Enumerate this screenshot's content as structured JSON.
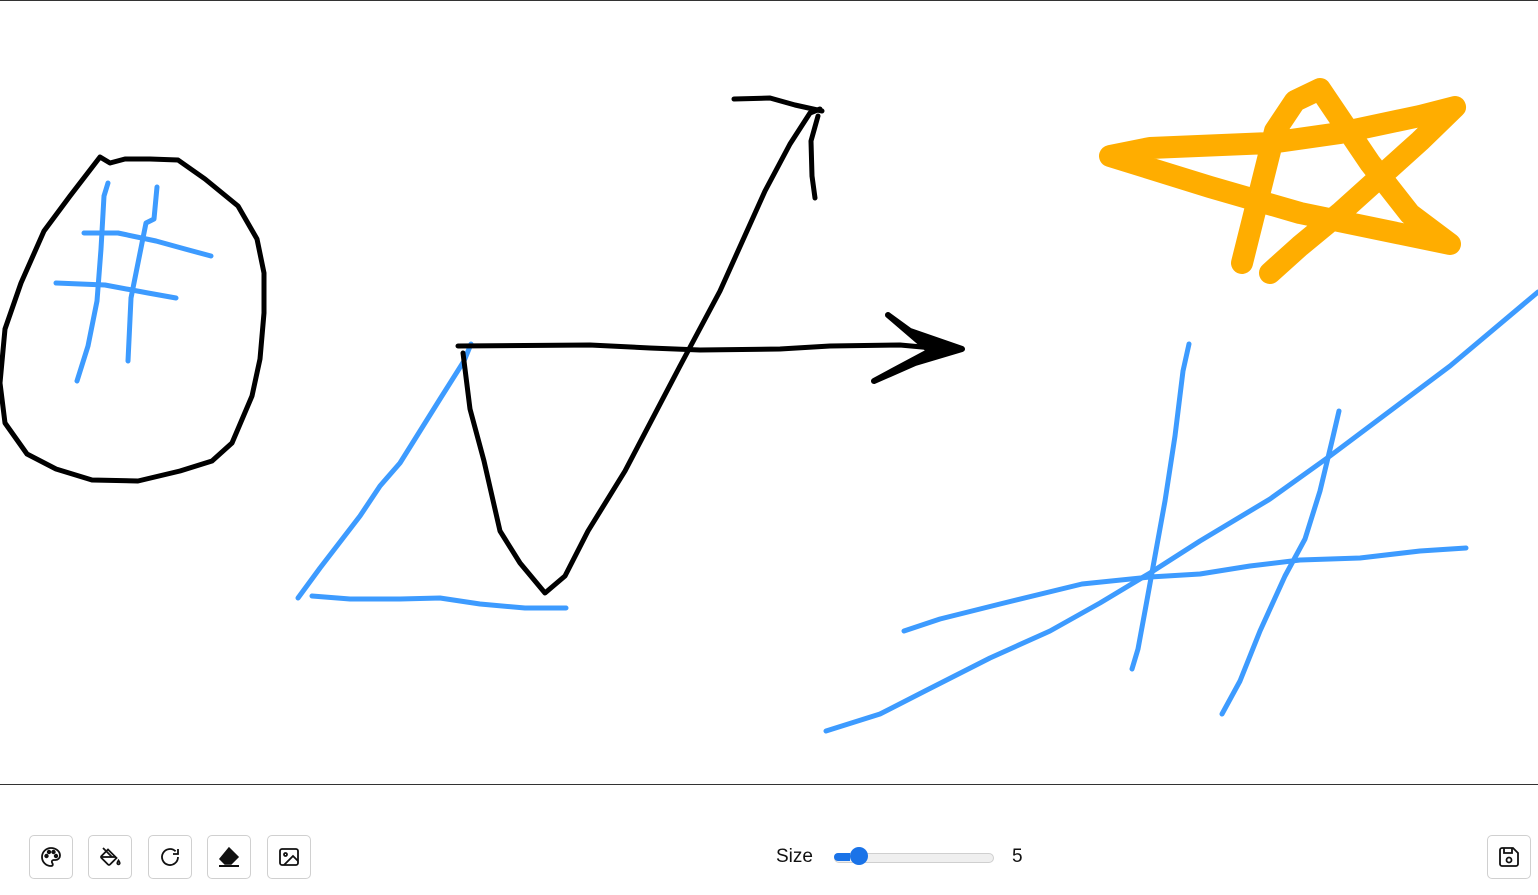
{
  "toolbar": {
    "buttons": [
      {
        "name": "color-picker-button",
        "icon": "palette-icon"
      },
      {
        "name": "fill-button",
        "icon": "paint-bucket-icon"
      },
      {
        "name": "redo-button",
        "icon": "redo-icon"
      },
      {
        "name": "eraser-button",
        "icon": "eraser-icon"
      },
      {
        "name": "image-button",
        "icon": "image-icon"
      }
    ],
    "save_icon": "save-icon"
  },
  "size": {
    "label": "Size",
    "value": "5",
    "fraction": 0.1
  },
  "colors": {
    "black": "#000000",
    "blue": "#3d9bff",
    "orange": "#ffad00",
    "accent": "#1a73e8"
  }
}
